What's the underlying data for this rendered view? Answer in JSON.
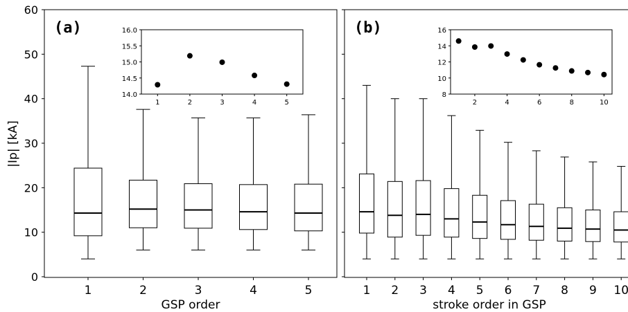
{
  "chart_data": [
    {
      "type": "box",
      "panel_label": "(a)",
      "xlabel": "GSP order",
      "ylabel": "|Ip| [kA]",
      "ylim": [
        0,
        60
      ],
      "yticks": [
        0,
        10,
        20,
        30,
        40,
        50,
        60
      ],
      "categories": [
        "1",
        "2",
        "3",
        "4",
        "5"
      ],
      "boxes": [
        {
          "min": 4.0,
          "q1": 9.2,
          "median": 14.3,
          "q3": 24.4,
          "max": 47.3
        },
        {
          "min": 6.0,
          "q1": 11.0,
          "median": 15.2,
          "q3": 21.7,
          "max": 37.6
        },
        {
          "min": 6.0,
          "q1": 10.9,
          "median": 15.0,
          "q3": 20.9,
          "max": 35.7
        },
        {
          "min": 6.0,
          "q1": 10.6,
          "median": 14.6,
          "q3": 20.7,
          "max": 35.7
        },
        {
          "min": 6.0,
          "q1": 10.3,
          "median": 14.3,
          "q3": 20.8,
          "max": 36.4
        }
      ],
      "inset": {
        "type": "scatter",
        "x": [
          1,
          2,
          3,
          4,
          5
        ],
        "y": [
          14.29,
          15.19,
          14.99,
          14.58,
          14.31
        ],
        "xlim": [
          0.5,
          5.5
        ],
        "ylim": [
          14.0,
          16.0
        ],
        "xticks": [
          1,
          2,
          3,
          4,
          5
        ],
        "yticks": [
          14.0,
          14.5,
          15.0,
          15.5,
          16.0
        ],
        "ytick_labels": [
          "14.0",
          "14.5",
          "15.0",
          "15.5",
          "16.0"
        ]
      }
    },
    {
      "type": "box",
      "panel_label": "(b)",
      "xlabel": "stroke order in GSP",
      "ylabel": "",
      "ylim": [
        0,
        60
      ],
      "categories": [
        "1",
        "2",
        "3",
        "4",
        "5",
        "6",
        "7",
        "8",
        "9",
        "10"
      ],
      "boxes": [
        {
          "min": 4.0,
          "q1": 9.8,
          "median": 14.6,
          "q3": 23.1,
          "max": 43.0
        },
        {
          "min": 4.0,
          "q1": 8.9,
          "median": 13.8,
          "q3": 21.4,
          "max": 40.0
        },
        {
          "min": 4.0,
          "q1": 9.3,
          "median": 14.0,
          "q3": 21.6,
          "max": 40.0
        },
        {
          "min": 4.0,
          "q1": 8.9,
          "median": 13.0,
          "q3": 19.8,
          "max": 36.2
        },
        {
          "min": 4.0,
          "q1": 8.6,
          "median": 12.3,
          "q3": 18.3,
          "max": 32.9
        },
        {
          "min": 4.0,
          "q1": 8.4,
          "median": 11.7,
          "q3": 17.1,
          "max": 30.2
        },
        {
          "min": 4.0,
          "q1": 8.2,
          "median": 11.3,
          "q3": 16.3,
          "max": 28.3
        },
        {
          "min": 4.0,
          "q1": 8.0,
          "median": 10.9,
          "q3": 15.5,
          "max": 26.9
        },
        {
          "min": 4.0,
          "q1": 7.9,
          "median": 10.7,
          "q3": 15.0,
          "max": 25.8
        },
        {
          "min": 4.0,
          "q1": 7.8,
          "median": 10.5,
          "q3": 14.6,
          "max": 24.8
        }
      ],
      "inset": {
        "type": "scatter",
        "x": [
          1,
          2,
          3,
          4,
          5,
          6,
          7,
          8,
          9,
          10
        ],
        "y": [
          14.6,
          13.85,
          13.98,
          12.98,
          12.25,
          11.65,
          11.25,
          10.88,
          10.68,
          10.43
        ],
        "xlim": [
          0.5,
          10.5
        ],
        "ylim": [
          8,
          16
        ],
        "xticks": [
          2,
          4,
          6,
          8,
          10
        ],
        "yticks": [
          8,
          10,
          12,
          14,
          16
        ],
        "ytick_labels": [
          "8",
          "10",
          "12",
          "14",
          "16"
        ]
      }
    }
  ]
}
